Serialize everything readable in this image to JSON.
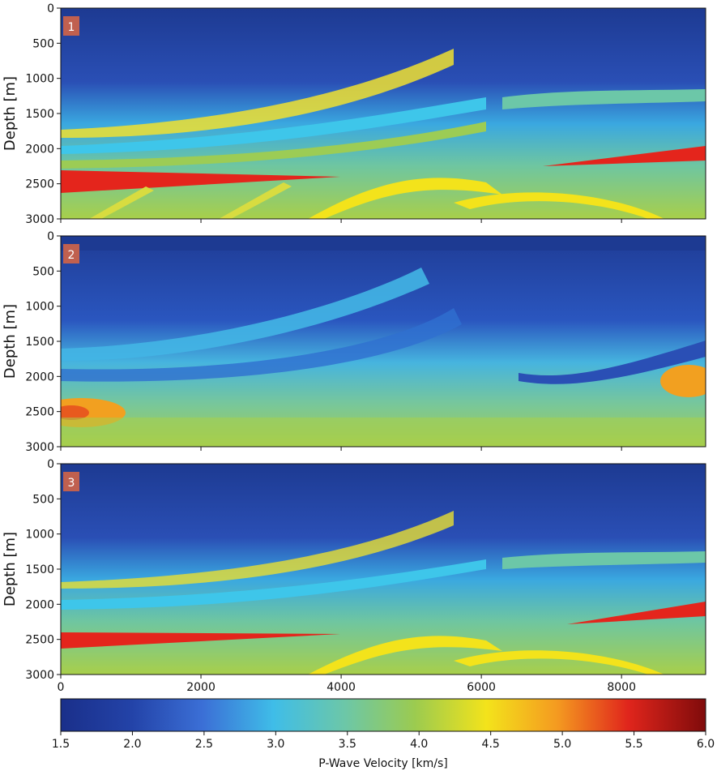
{
  "chart_data": {
    "type": "heatmap",
    "panels": [
      {
        "label": "1",
        "ylabel": "Depth [m]"
      },
      {
        "label": "2",
        "ylabel": "Depth [m]"
      },
      {
        "label": "3",
        "ylabel": "Depth [m]"
      }
    ],
    "xlim": [
      0,
      9200
    ],
    "ylim": [
      3000,
      0
    ],
    "x_ticks": [
      "0",
      "2000",
      "4000",
      "6000",
      "8000"
    ],
    "x_tick_values": [
      0,
      2000,
      4000,
      6000,
      8000
    ],
    "y_ticks": [
      "0",
      "500",
      "1000",
      "1500",
      "2000",
      "2500",
      "3000"
    ],
    "y_tick_values": [
      0,
      500,
      1000,
      1500,
      2000,
      2500,
      3000
    ],
    "colorbar": {
      "label": "P-Wave Velocity [km/s]",
      "range": [
        1.5,
        6.0
      ],
      "ticks": [
        "1.5",
        "2.0",
        "2.5",
        "3.0",
        "3.5",
        "4.0",
        "4.5",
        "5.0",
        "5.5",
        "6.0"
      ],
      "tick_values": [
        1.5,
        2.0,
        2.5,
        3.0,
        3.5,
        4.0,
        4.5,
        5.0,
        5.5,
        6.0
      ],
      "colormap": "jet"
    },
    "badge_color": "#c0604f"
  }
}
